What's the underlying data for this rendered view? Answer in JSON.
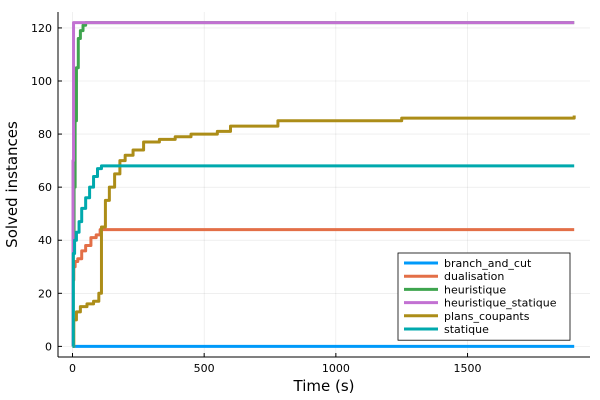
{
  "chart_data": {
    "type": "line",
    "title": "",
    "xlabel": "Time (s)",
    "ylabel": "Solved instances",
    "xlim": [
      -55,
      1965
    ],
    "ylim": [
      -4,
      126
    ],
    "xticks": [
      0,
      500,
      1000,
      1500
    ],
    "yticks": [
      0,
      20,
      40,
      60,
      80,
      100,
      120
    ],
    "grid": true,
    "legend_position": "bottom-right",
    "series": [
      {
        "name": "branch_and_cut",
        "color": "#009AFA",
        "points": [
          [
            0,
            0
          ],
          [
            1905,
            0
          ]
        ]
      },
      {
        "name": "dualisation",
        "color": "#E36F47",
        "points": [
          [
            0,
            0
          ],
          [
            2,
            25
          ],
          [
            5,
            30
          ],
          [
            10,
            32
          ],
          [
            20,
            33
          ],
          [
            35,
            36
          ],
          [
            50,
            38
          ],
          [
            70,
            41
          ],
          [
            90,
            42
          ],
          [
            105,
            44
          ],
          [
            300,
            44
          ],
          [
            1000,
            44
          ],
          [
            1905,
            44
          ]
        ]
      },
      {
        "name": "heuristique",
        "color": "#3EA44E",
        "points": [
          [
            0,
            0
          ],
          [
            3,
            35
          ],
          [
            6,
            60
          ],
          [
            10,
            85
          ],
          [
            15,
            105
          ],
          [
            22,
            116
          ],
          [
            30,
            119
          ],
          [
            40,
            121
          ],
          [
            50,
            122
          ],
          [
            1905,
            122
          ]
        ]
      },
      {
        "name": "heuristique_statique",
        "color": "#C271D2",
        "points": [
          [
            0,
            0
          ],
          [
            2,
            70
          ],
          [
            4,
            122
          ],
          [
            1905,
            122
          ]
        ]
      },
      {
        "name": "plans_coupants",
        "color": "#AC8D18",
        "points": [
          [
            0,
            0
          ],
          [
            5,
            10
          ],
          [
            15,
            13
          ],
          [
            30,
            15
          ],
          [
            55,
            16
          ],
          [
            80,
            17
          ],
          [
            100,
            20
          ],
          [
            110,
            45
          ],
          [
            125,
            55
          ],
          [
            140,
            60
          ],
          [
            160,
            65
          ],
          [
            180,
            70
          ],
          [
            200,
            72
          ],
          [
            230,
            74
          ],
          [
            270,
            77
          ],
          [
            330,
            78
          ],
          [
            390,
            79
          ],
          [
            450,
            80
          ],
          [
            550,
            81
          ],
          [
            600,
            83
          ],
          [
            700,
            83
          ],
          [
            780,
            85
          ],
          [
            1000,
            85
          ],
          [
            1250,
            86
          ],
          [
            1905,
            87
          ]
        ]
      },
      {
        "name": "statique",
        "color": "#00A9AD",
        "points": [
          [
            0,
            0
          ],
          [
            3,
            35
          ],
          [
            8,
            40
          ],
          [
            15,
            43
          ],
          [
            25,
            47
          ],
          [
            35,
            52
          ],
          [
            50,
            56
          ],
          [
            65,
            60
          ],
          [
            80,
            64
          ],
          [
            95,
            67
          ],
          [
            110,
            68
          ],
          [
            300,
            68
          ],
          [
            1000,
            68
          ],
          [
            1905,
            68
          ]
        ]
      }
    ]
  }
}
